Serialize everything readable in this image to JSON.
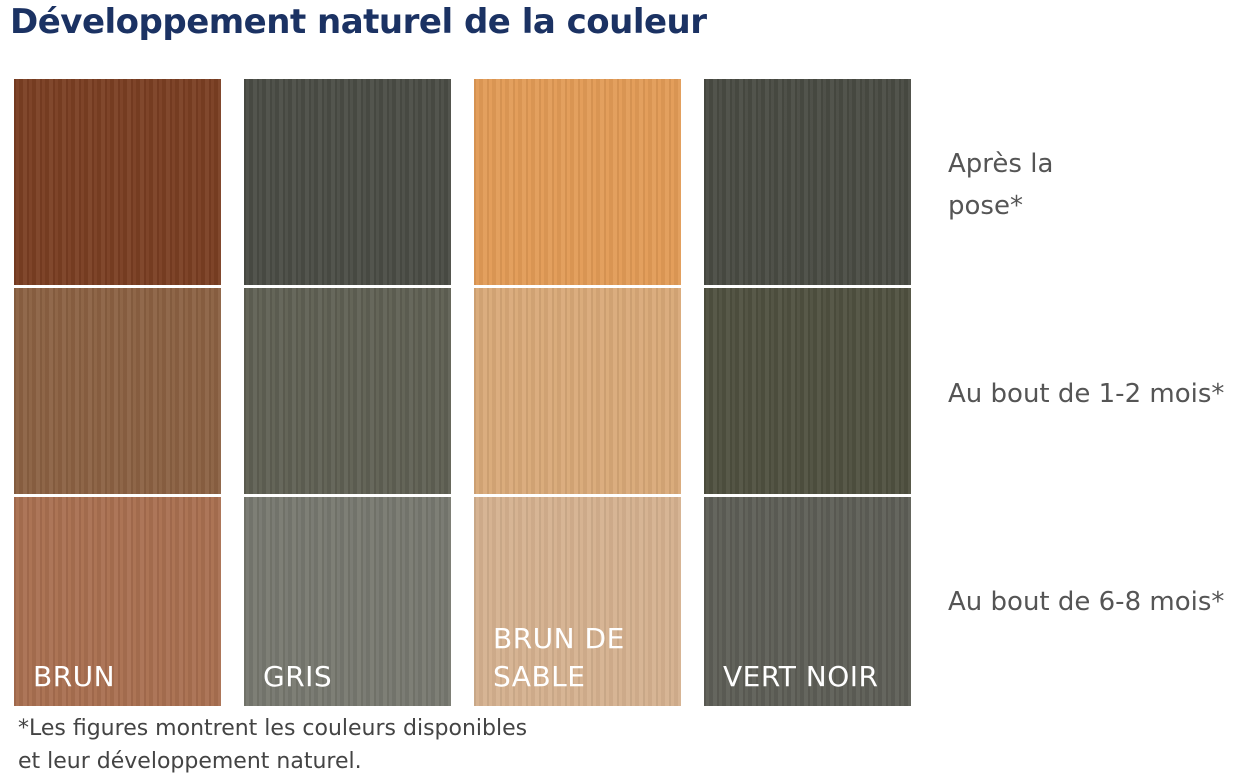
{
  "title": "Développement naturel de la couleur",
  "colors": [
    {
      "name": "BRUN",
      "swatches": [
        "#7a3e22",
        "#8b6142",
        "#a96f50"
      ]
    },
    {
      "name": "GRIS",
      "swatches": [
        "#4a4c45",
        "#5f6053",
        "#77786f"
      ]
    },
    {
      "name": "BRUN DE SABLE",
      "swatches": [
        "#e29b56",
        "#d9a978",
        "#d5b18f"
      ]
    },
    {
      "name": "VERT NOIR",
      "swatches": [
        "#494b43",
        "#4f503f",
        "#5d5e56"
      ]
    }
  ],
  "stages": [
    "Après la pose*",
    "Au bout de 1-2 mois*",
    "Au bout de 6-8 mois*"
  ],
  "footnote": "*Les figures montrent les couleurs disponibles et leur développement naturel."
}
